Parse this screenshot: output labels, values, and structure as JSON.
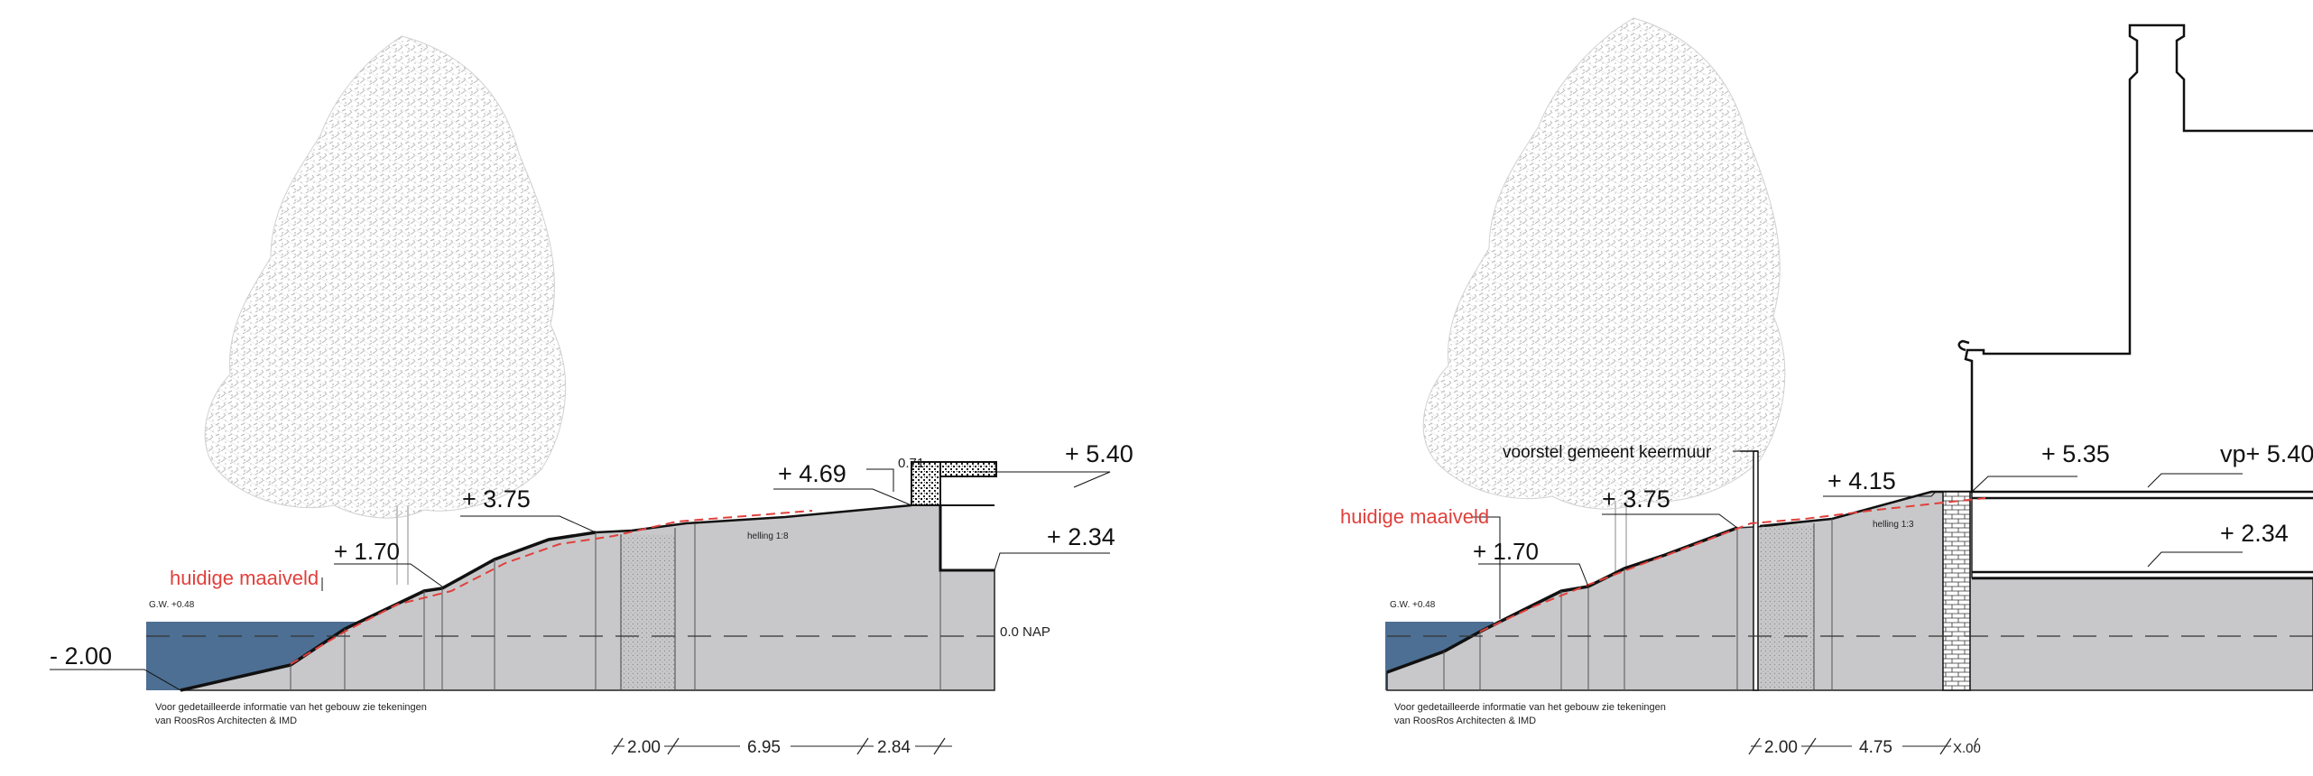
{
  "left_section": {
    "level_water": "- 2.00",
    "level_low_berm": "+ 1.70",
    "level_mid_slope": "+ 3.75",
    "level_path": "+ 4.69",
    "level_cap_thickness": "0.71",
    "level_building_top": "+ 5.40",
    "level_building_floor": "+ 2.34",
    "current_ground_label": "huidige maaiveld",
    "groundwater_label": "G.W. +0.48",
    "nap_label": "0.0 NAP",
    "slope_label": "helling 1:8",
    "note_line1": "Voor gedetailleerde informatie van het gebouw zie tekeningen",
    "note_line2": "van RoosRos Architecten & IMD",
    "dim_left": "2.00",
    "dim_mid": "6.95",
    "dim_right": "2.84"
  },
  "right_section": {
    "current_ground_label": "huidige maaiveld",
    "wall_proposal_label": "voorstel gemeent keermuur",
    "level_low_berm": "+ 1.70",
    "level_mid_slope": "+ 3.75",
    "level_top_slope": "+ 4.15",
    "level_quay": "+ 5.35",
    "level_building_top": "vp+ 5.40",
    "level_building_floor": "+ 2.34",
    "groundwater_label": "G.W. +0.48",
    "slope_label": "helling 1:3",
    "note_line1": "Voor gedetailleerde informatie van het gebouw zie tekeningen",
    "note_line2": "van RoosRos Architecten & IMD",
    "dim_left": "2.00",
    "dim_mid": "4.75",
    "dim_right": "X.00"
  },
  "colors": {
    "water": "#4d6f93",
    "ground": "#c8c8ca",
    "current_ground_line": "#e0403c",
    "tree": "#c4c4c4"
  }
}
